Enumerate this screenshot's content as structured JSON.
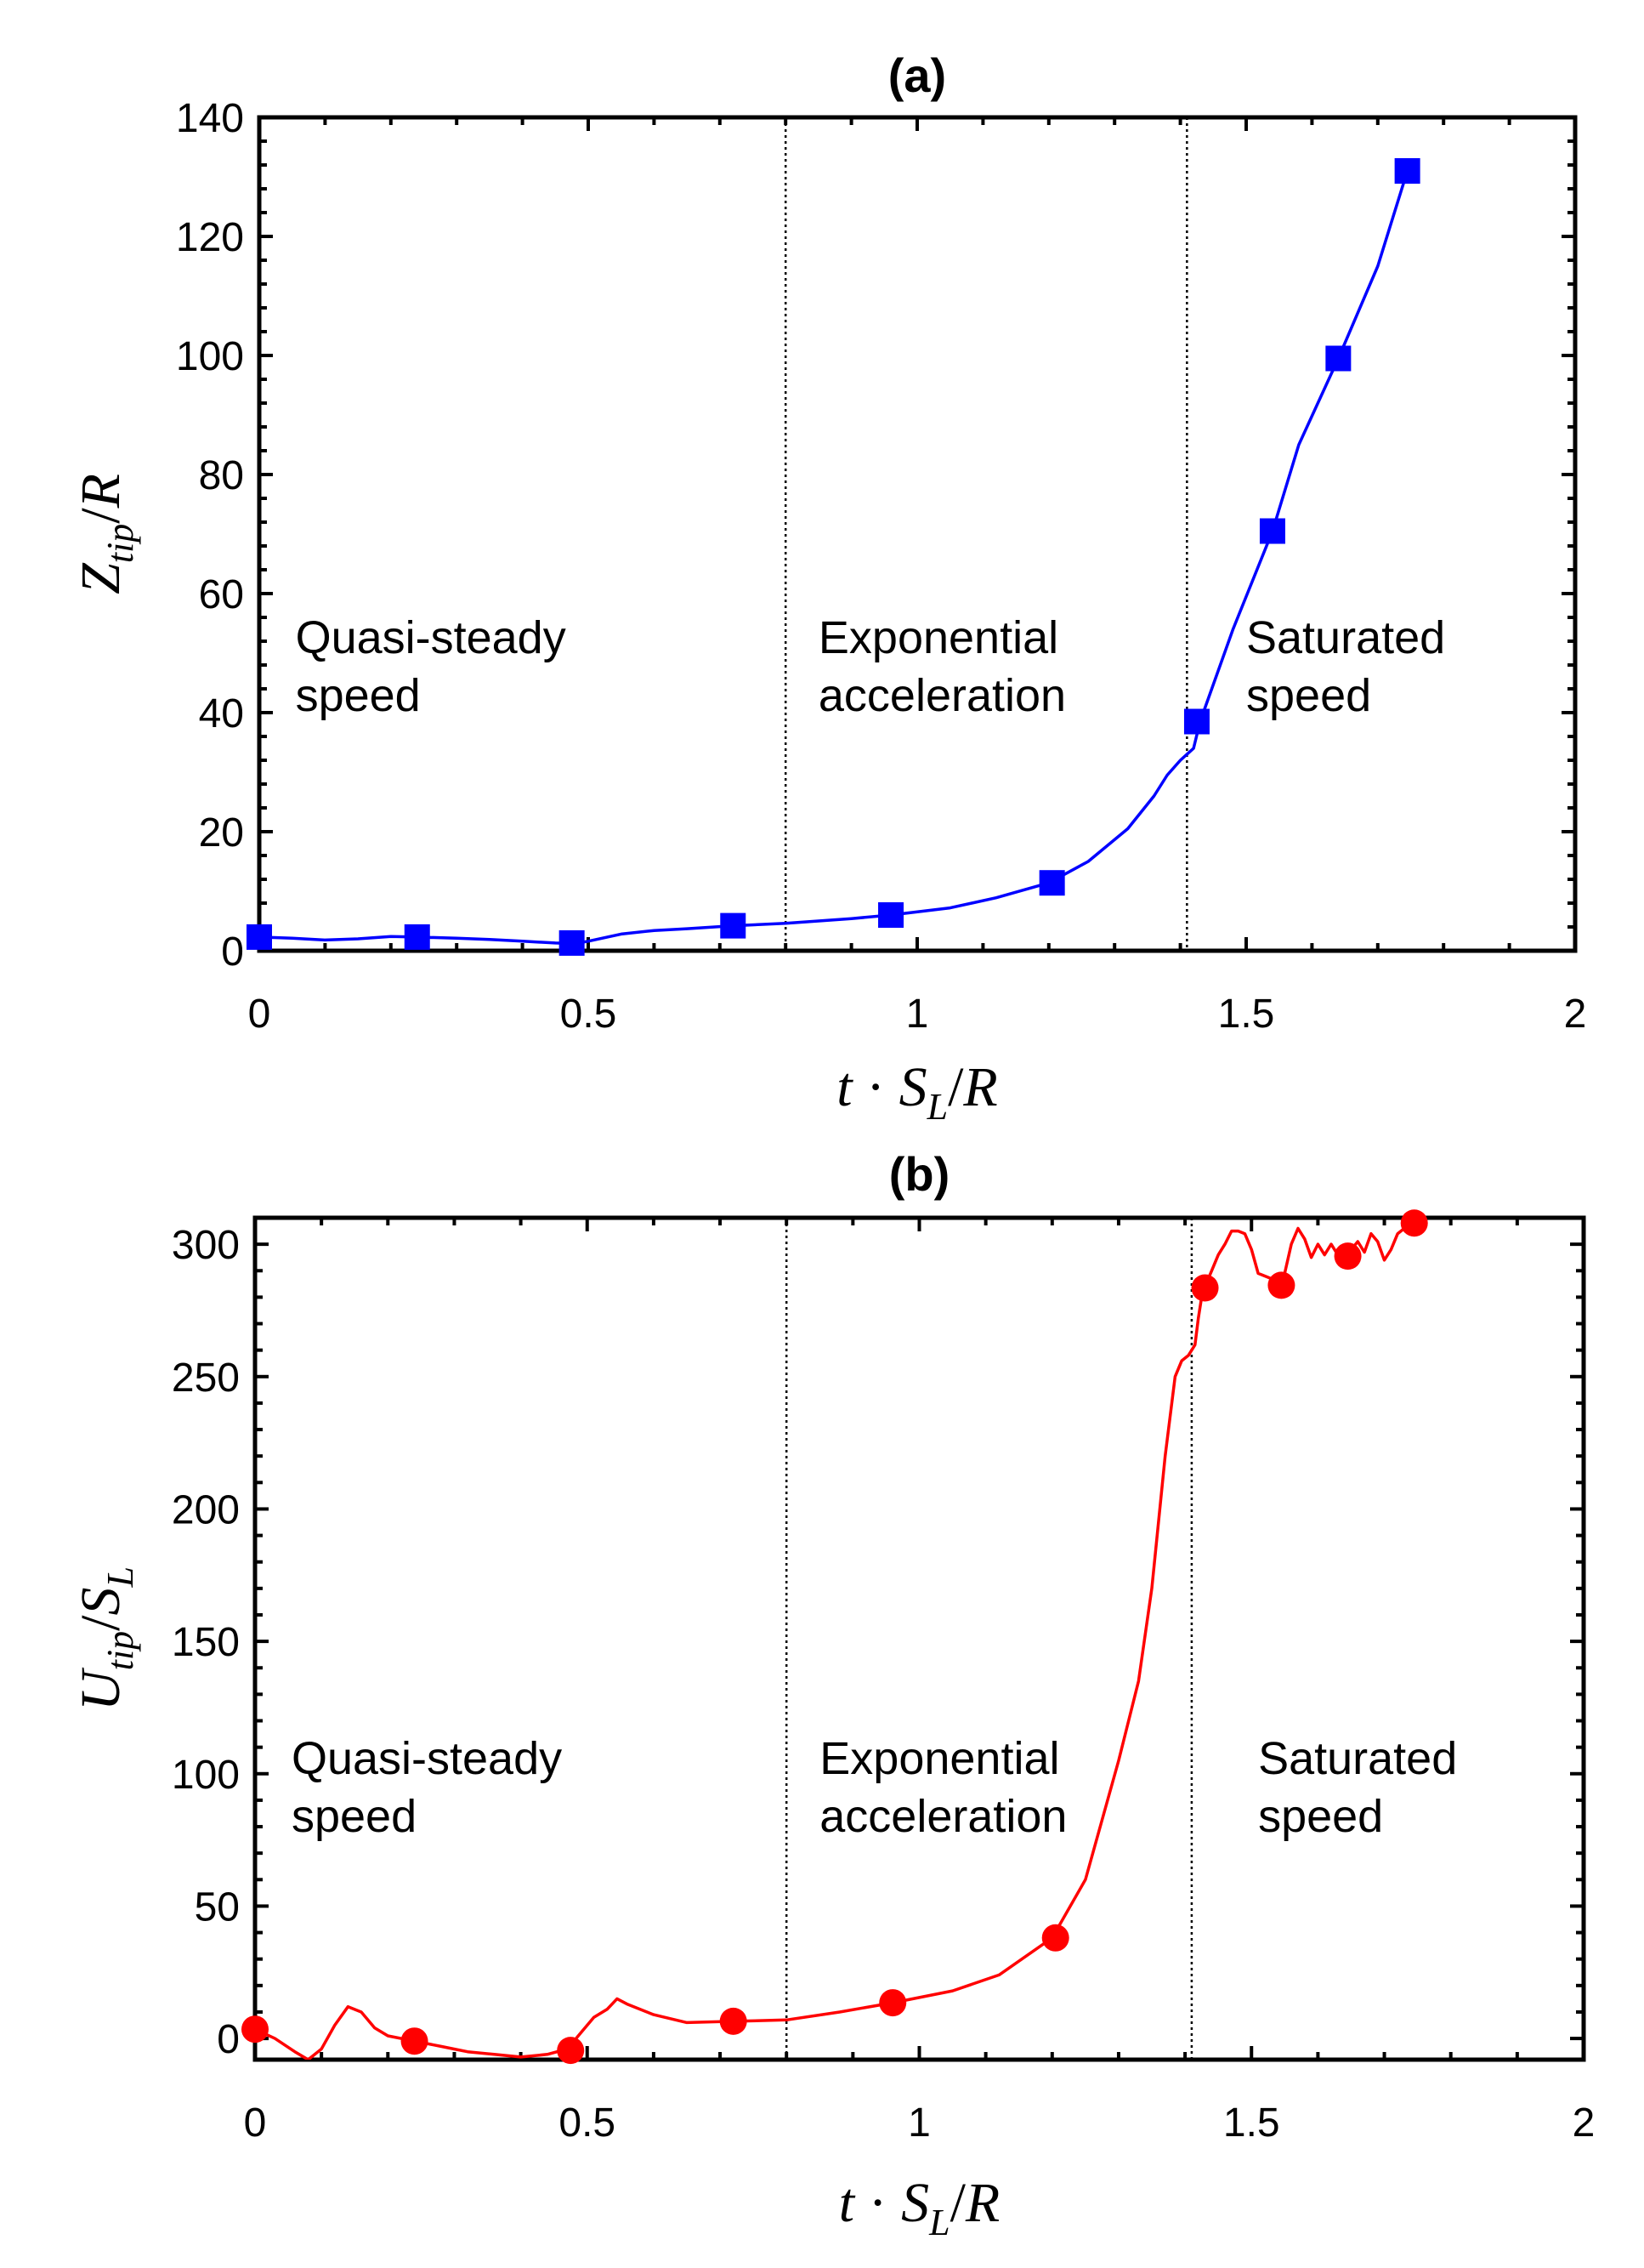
{
  "chart_data": [
    {
      "type": "line",
      "panel_label": "(a)",
      "xlabel": "t · S_L/R",
      "ylabel": "Z_tip/R",
      "xlim": [
        0,
        2
      ],
      "ylim": [
        0,
        140
      ],
      "xticks": [
        0,
        0.5,
        1,
        1.5,
        2
      ],
      "xtick_labels": [
        "0",
        "0.5",
        "1",
        "1.5",
        "2"
      ],
      "yticks": [
        0,
        20,
        40,
        60,
        80,
        100,
        120,
        140
      ],
      "ytick_labels": [
        "0",
        "20",
        "40",
        "60",
        "80",
        "100",
        "120",
        "140"
      ],
      "color": "#0000ff",
      "marker": "square",
      "curve": {
        "x": [
          0,
          0.05,
          0.1,
          0.15,
          0.2,
          0.24,
          0.3,
          0.35,
          0.4,
          0.45,
          0.48,
          0.5,
          0.55,
          0.6,
          0.65,
          0.72,
          0.8,
          0.9,
          0.96,
          1.05,
          1.12,
          1.2,
          1.26,
          1.32,
          1.36,
          1.38,
          1.4,
          1.42,
          1.43,
          1.48,
          1.54,
          1.58,
          1.64,
          1.7,
          1.745
        ],
        "y": [
          2.3,
          2.1,
          1.8,
          2.0,
          2.4,
          2.3,
          2.1,
          1.9,
          1.6,
          1.3,
          1.2,
          1.6,
          2.8,
          3.4,
          3.7,
          4.2,
          4.6,
          5.4,
          6.0,
          7.2,
          8.9,
          11.4,
          15.0,
          20.5,
          26.0,
          29.5,
          32.0,
          34.0,
          38.5,
          54.0,
          70.5,
          85.0,
          99.5,
          115.0,
          131.0
        ]
      },
      "markers": {
        "x": [
          0.0,
          0.24,
          0.475,
          0.72,
          0.96,
          1.205,
          1.425,
          1.54,
          1.64,
          1.745
        ],
        "y": [
          2.3,
          2.3,
          1.3,
          4.2,
          6.0,
          11.4,
          38.5,
          70.5,
          99.5,
          131.0
        ]
      },
      "vlines": [
        0.8,
        1.41
      ],
      "annotations": [
        {
          "lines": [
            "Quasi-steady",
            "speed"
          ],
          "x": 0.055,
          "y": 50
        },
        {
          "lines": [
            "Exponential",
            "acceleration"
          ],
          "x": 0.85,
          "y": 50
        },
        {
          "lines": [
            "Saturated",
            "speed"
          ],
          "x": 1.5,
          "y": 50
        }
      ]
    },
    {
      "type": "line",
      "panel_label": "(b)",
      "xlabel": "t · S_L/R",
      "ylabel": "U_tip/S_L",
      "xlim": [
        0,
        2
      ],
      "ylim": [
        -8,
        310
      ],
      "xticks": [
        0,
        0.5,
        1,
        1.5,
        2
      ],
      "xtick_labels": [
        "0",
        "0.5",
        "1",
        "1.5",
        "2"
      ],
      "yticks": [
        0,
        50,
        100,
        150,
        200,
        250,
        300
      ],
      "ytick_labels": [
        "0",
        "50",
        "100",
        "150",
        "200",
        "250",
        "300"
      ],
      "color": "#ff0000",
      "marker": "circle",
      "curve": {
        "x": [
          0,
          0.03,
          0.06,
          0.08,
          0.1,
          0.12,
          0.14,
          0.16,
          0.18,
          0.2,
          0.24,
          0.28,
          0.32,
          0.36,
          0.4,
          0.44,
          0.47,
          0.49,
          0.51,
          0.53,
          0.545,
          0.56,
          0.6,
          0.65,
          0.72,
          0.8,
          0.88,
          0.96,
          1.05,
          1.12,
          1.2,
          1.25,
          1.3,
          1.33,
          1.35,
          1.37,
          1.385,
          1.395,
          1.405,
          1.415,
          1.42,
          1.425,
          1.43,
          1.44,
          1.45,
          1.46,
          1.47,
          1.48,
          1.49,
          1.5,
          1.51,
          1.52,
          1.53,
          1.54,
          1.55,
          1.56,
          1.57,
          1.58,
          1.59,
          1.6,
          1.61,
          1.62,
          1.63,
          1.64,
          1.65,
          1.66,
          1.67,
          1.68,
          1.69,
          1.7,
          1.71,
          1.72,
          1.73,
          1.745
        ],
        "y": [
          3.5,
          0,
          -5,
          -8,
          -4,
          5,
          12,
          10,
          4,
          1,
          -1,
          -3,
          -5,
          -6,
          -7,
          -6,
          -4,
          2,
          8,
          11,
          15,
          13,
          9,
          6,
          6.5,
          7,
          10,
          13.5,
          18,
          24,
          38,
          60,
          105,
          135,
          170,
          220,
          250,
          256,
          258,
          262,
          272,
          280,
          284,
          290,
          296,
          300,
          305,
          305,
          304,
          298,
          289,
          288,
          287,
          284.5,
          289,
          300,
          306,
          302,
          295,
          300,
          296,
          300,
          296,
          295.5,
          298,
          301,
          297,
          304,
          301,
          294,
          298,
          304,
          306,
          308
        ]
      },
      "markers": {
        "x": [
          0.0,
          0.24,
          0.475,
          0.72,
          0.96,
          1.205,
          1.43,
          1.545,
          1.645,
          1.745
        ],
        "y": [
          3.5,
          -1,
          -4.5,
          6.5,
          13.5,
          38,
          283.5,
          284.5,
          295.5,
          308
        ]
      },
      "vlines": [
        0.8,
        1.41
      ],
      "annotations": [
        {
          "lines": [
            "Quasi-steady",
            "speed"
          ],
          "x": 0.055,
          "y": 100
        },
        {
          "lines": [
            "Exponential",
            "acceleration"
          ],
          "x": 0.85,
          "y": 100
        },
        {
          "lines": [
            "Saturated",
            "speed"
          ],
          "x": 1.51,
          "y": 100
        }
      ]
    }
  ]
}
